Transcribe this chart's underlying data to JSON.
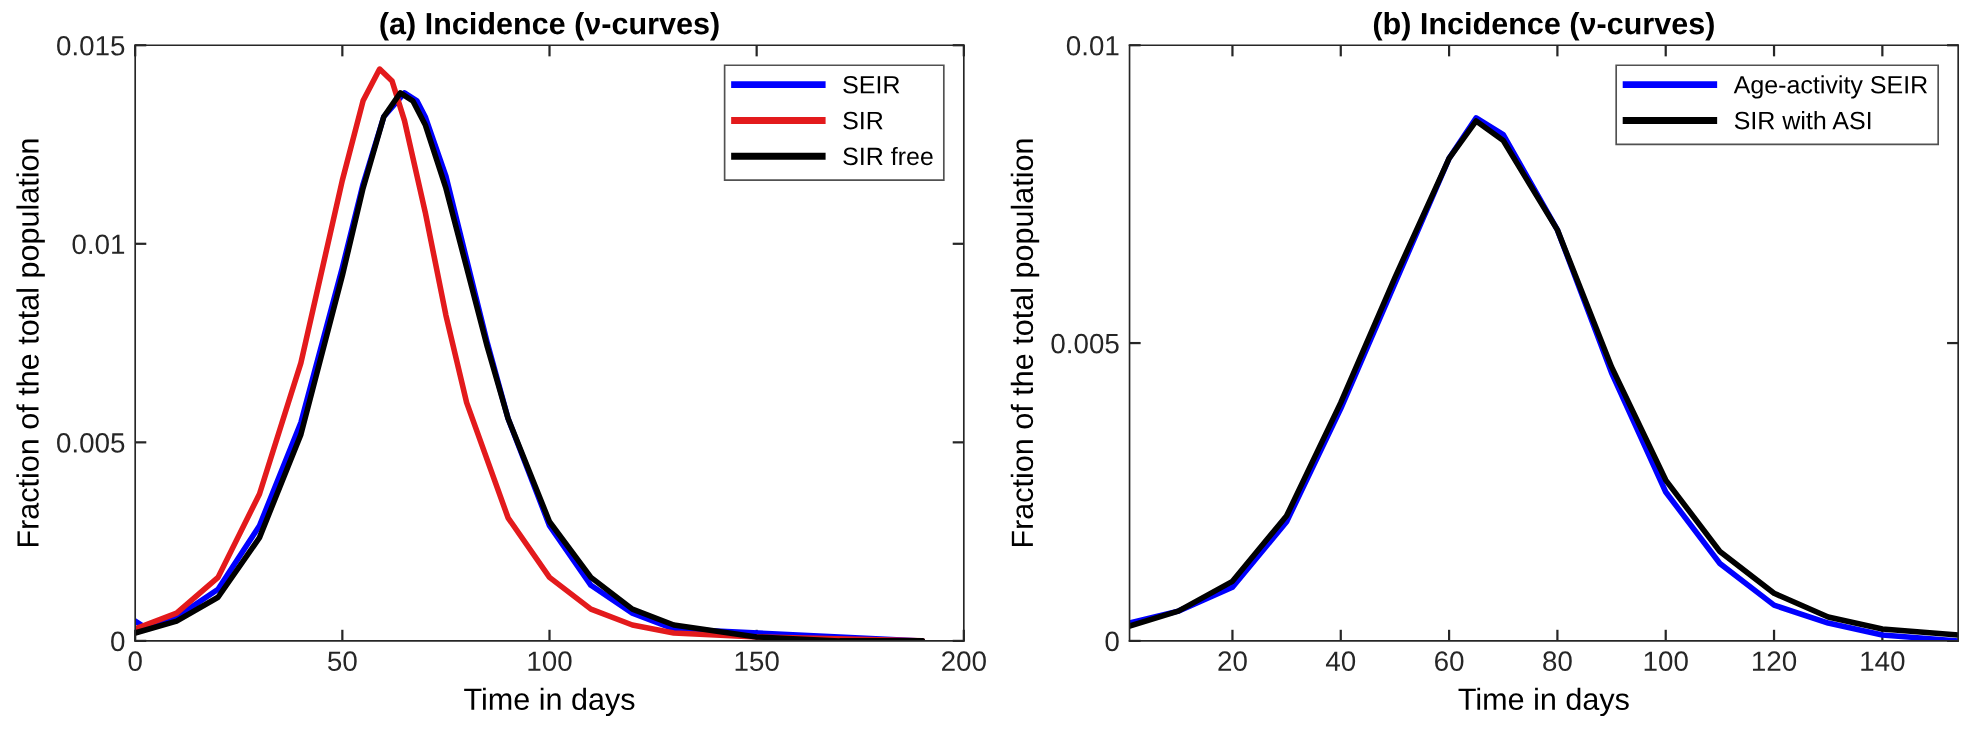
{
  "chart_data": [
    {
      "type": "line",
      "title": "(a) Incidence (ν-curves)",
      "xlabel": "Time in days",
      "ylabel": "Fraction of the total population",
      "xlim": [
        0,
        200
      ],
      "ylim": [
        0,
        0.015
      ],
      "xticks": [
        0,
        50,
        100,
        150,
        200
      ],
      "yticks": [
        0,
        0.005,
        0.01,
        0.015
      ],
      "legend": "top right",
      "grid": false,
      "line_style": "solid",
      "marker": "none",
      "series": [
        {
          "name": "SEIR",
          "color": "#0000ff",
          "x": [
            0,
            3,
            10,
            20,
            30,
            40,
            50,
            55,
            60,
            65,
            68,
            70,
            75,
            80,
            85,
            90,
            100,
            110,
            120,
            130,
            190
          ],
          "values": [
            0.0005,
            0.0003,
            0.0006,
            0.0013,
            0.0029,
            0.0055,
            0.0094,
            0.0115,
            0.0132,
            0.0138,
            0.0136,
            0.0132,
            0.0117,
            0.0096,
            0.0075,
            0.0056,
            0.0029,
            0.0014,
            0.0007,
            0.0003,
            0.0
          ]
        },
        {
          "name": "SIR",
          "color": "#e31a1c",
          "x": [
            0,
            10,
            20,
            30,
            40,
            50,
            55,
            59,
            62,
            65,
            70,
            75,
            80,
            90,
            100,
            110,
            120,
            130,
            150,
            190
          ],
          "values": [
            0.0003,
            0.0007,
            0.0016,
            0.0037,
            0.007,
            0.0116,
            0.0136,
            0.0144,
            0.0141,
            0.0131,
            0.0108,
            0.0082,
            0.006,
            0.0031,
            0.0016,
            0.0008,
            0.0004,
            0.0002,
            0.0001,
            0.0
          ]
        },
        {
          "name": "SIR free",
          "color": "#000000",
          "x": [
            0,
            10,
            20,
            30,
            40,
            50,
            55,
            60,
            64,
            67,
            70,
            75,
            80,
            85,
            90,
            100,
            110,
            120,
            130,
            150,
            170,
            190
          ],
          "values": [
            0.0002,
            0.0005,
            0.0011,
            0.0026,
            0.0052,
            0.0092,
            0.0114,
            0.0132,
            0.0138,
            0.0136,
            0.013,
            0.0114,
            0.0094,
            0.0074,
            0.0056,
            0.003,
            0.0016,
            0.0008,
            0.0004,
            0.0001,
            0.0,
            0.0
          ]
        }
      ]
    },
    {
      "type": "line",
      "title": "(b) Incidence (ν-curves)",
      "xlabel": "Time in days",
      "ylabel": "Fraction of the total population",
      "xlim": [
        1,
        154
      ],
      "ylim": [
        0,
        0.01
      ],
      "xticks": [
        20,
        40,
        60,
        80,
        100,
        120,
        140
      ],
      "yticks": [
        0,
        0.005,
        0.01
      ],
      "legend": "top right",
      "grid": false,
      "line_style": "solid",
      "marker": "none",
      "series": [
        {
          "name": "Age-activity SEIR",
          "color": "#0000ff",
          "x": [
            1,
            10,
            20,
            30,
            40,
            50,
            60,
            65,
            70,
            80,
            90,
            100,
            110,
            120,
            130,
            140,
            154
          ],
          "values": [
            0.0003,
            0.0005,
            0.0009,
            0.002,
            0.0039,
            0.006,
            0.0081,
            0.00878,
            0.0085,
            0.0069,
            0.0045,
            0.0025,
            0.0013,
            0.0006,
            0.0003,
            0.0001,
            0.0
          ]
        },
        {
          "name": "SIR with ASI",
          "color": "#000000",
          "x": [
            1,
            10,
            20,
            30,
            40,
            50,
            60,
            65,
            70,
            80,
            90,
            100,
            110,
            120,
            130,
            140,
            154
          ],
          "values": [
            0.00025,
            0.0005,
            0.001,
            0.0021,
            0.004,
            0.0061,
            0.0081,
            0.00873,
            0.0084,
            0.0069,
            0.0046,
            0.0027,
            0.0015,
            0.0008,
            0.0004,
            0.0002,
            0.0001
          ]
        }
      ]
    }
  ]
}
